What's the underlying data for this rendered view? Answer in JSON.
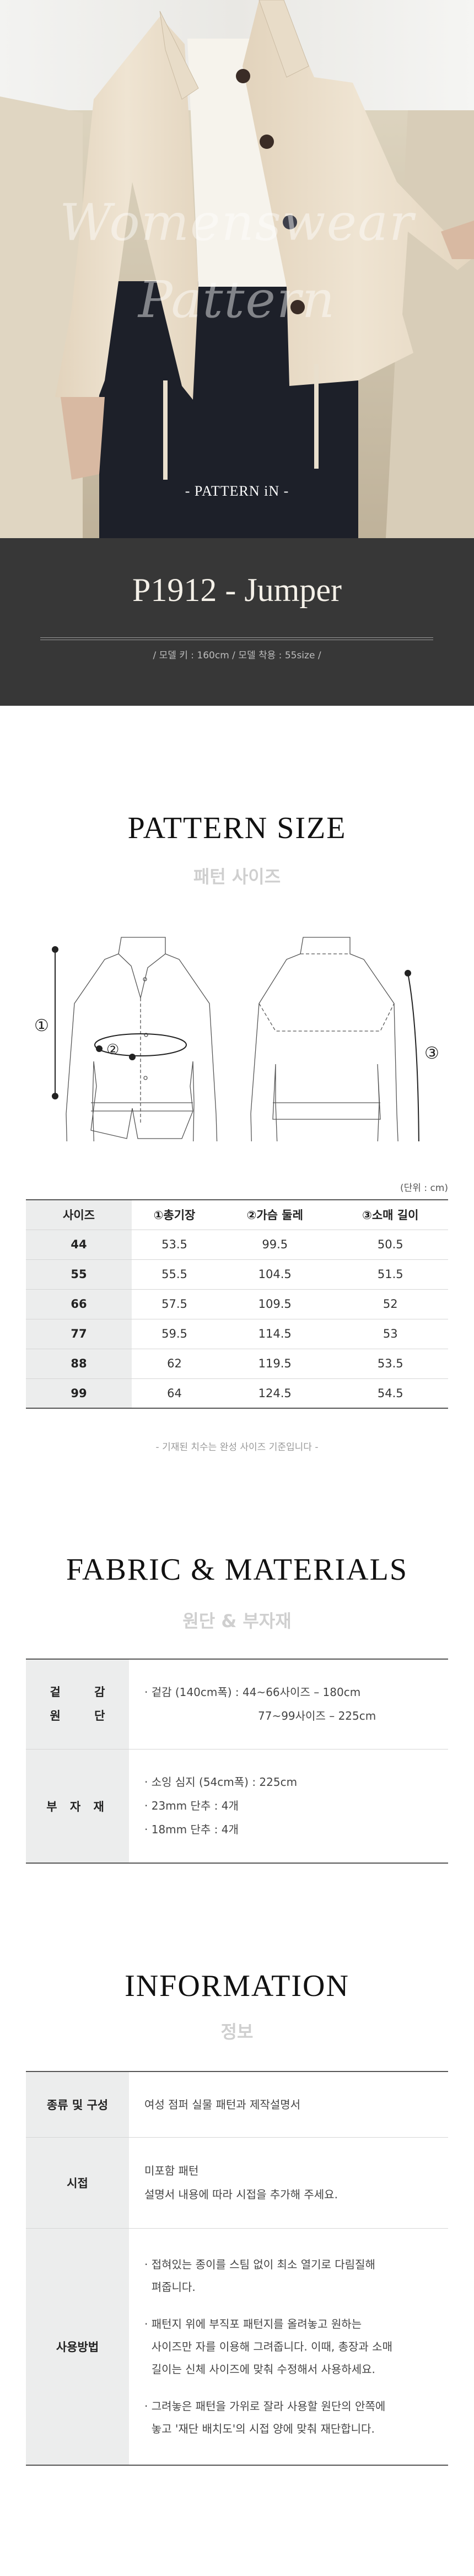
{
  "hero": {
    "watermark_line1": "Womenswear",
    "watermark_line2": "Pattern",
    "brand": "-  PATTERN iN  -"
  },
  "product": {
    "title": "P1912 - Jumper",
    "model_info": "/  모델 키 : 160cm  /  모델 착용 : 55size  /"
  },
  "pattern_size": {
    "title": "PATTERN SIZE",
    "subtitle": "패턴 사이즈",
    "markers": [
      "①",
      "②",
      "③"
    ],
    "unit": "(단위 : cm)",
    "columns": [
      "사이즈",
      "①총기장",
      "②가슴 둘레",
      "③소매 길이"
    ],
    "rows": [
      [
        "44",
        "53.5",
        "99.5",
        "50.5"
      ],
      [
        "55",
        "55.5",
        "104.5",
        "51.5"
      ],
      [
        "66",
        "57.5",
        "109.5",
        "52"
      ],
      [
        "77",
        "59.5",
        "114.5",
        "53"
      ],
      [
        "88",
        "62",
        "119.5",
        "53.5"
      ],
      [
        "99",
        "64",
        "124.5",
        "54.5"
      ]
    ],
    "note": "- 기재된 치수는 완성 사이즈 기준입니다 -"
  },
  "fabric": {
    "title": "FABRIC & MATERIALS",
    "subtitle": "원단 & 부자재",
    "rows": [
      {
        "label_chars": [
          "겉",
          "감",
          "원",
          "단"
        ],
        "lines": [
          "· 겉감 (140cm폭) : 44~66사이즈 – 180cm",
          "77~99사이즈 – 225cm"
        ]
      },
      {
        "label": "부 자 재",
        "lines": [
          "· 소잉 심지 (54cm폭) : 225cm",
          "· 23mm 단추  : 4개",
          "· 18mm 단추  : 4개"
        ]
      }
    ]
  },
  "information": {
    "title": "INFORMATION",
    "subtitle": "정보",
    "rows": [
      {
        "label": "종류 및 구성",
        "lines": [
          "여성 점퍼 실물 패턴과 제작설명서"
        ]
      },
      {
        "label": "시접",
        "lines": [
          "미포함 패턴",
          "설명서 내용에 따라 시접을 추가해 주세요."
        ]
      },
      {
        "label": "사용방법",
        "items": [
          [
            "· 접혀있는 종이를 스팀 없이 최소 열기로 다림질해",
            "  펴줍니다."
          ],
          [
            "· 패턴지 위에 부직포 패턴지를 올려놓고 원하는",
            "  사이즈만 자를 이용해 그려줍니다. 이때, 총장과 소매",
            "  길이는 신체 사이즈에 맞춰 수정해서 사용하세요."
          ],
          [
            "· 그려놓은 패턴을 가위로 잘라 사용할 원단의 안쪽에",
            "  놓고 '재단 배치도'의 시접 양에 맞춰 재단합니다."
          ]
        ]
      }
    ]
  },
  "colors": {
    "band": "#373737",
    "label_bg": "#eceded",
    "subtitle": "#cfcfcf"
  }
}
